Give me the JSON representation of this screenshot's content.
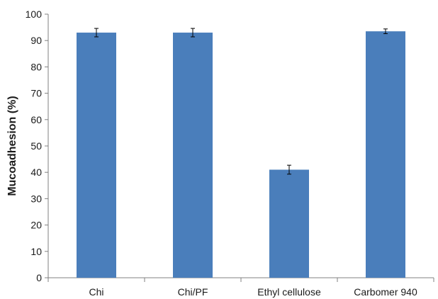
{
  "chart_data": {
    "type": "bar",
    "title": "",
    "xlabel": "",
    "ylabel": "Mucoadhesion (%)",
    "ylim": [
      0,
      100
    ],
    "yticks": [
      0,
      10,
      20,
      30,
      40,
      50,
      60,
      70,
      80,
      90,
      100
    ],
    "categories": [
      "Chi",
      "Chi/PF",
      "Ethyl cellulose",
      "Carbomer 940"
    ],
    "series": [
      {
        "values": [
          93,
          93,
          41,
          93.5
        ],
        "error": [
          1.6,
          1.6,
          1.7,
          0.9
        ],
        "color": "#4a7ebb"
      }
    ],
    "grid": false,
    "legend": "none"
  }
}
